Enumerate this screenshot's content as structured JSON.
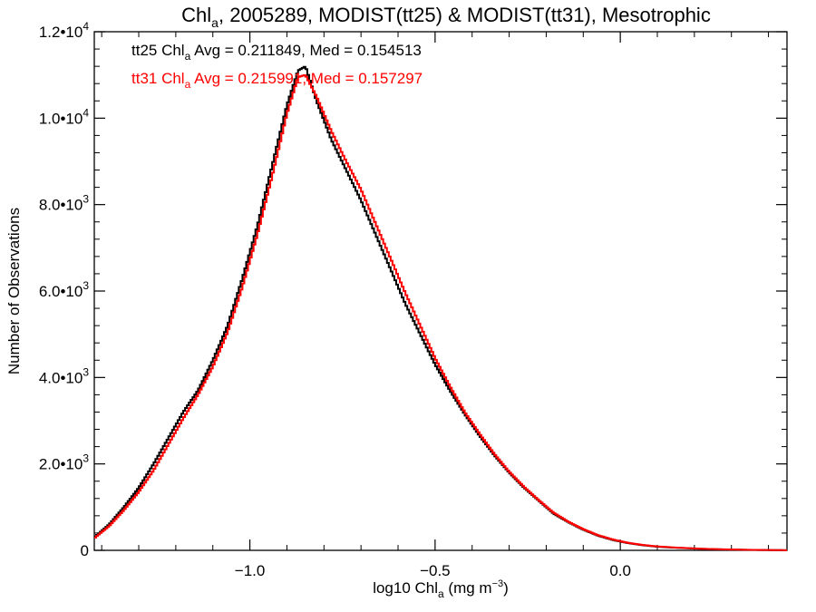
{
  "chart_data": {
    "type": "line",
    "style": "step-histogram",
    "title": {
      "main": "Chl",
      "sub": "a",
      "rest": ", 2005289, MODIST(tt25) & MODIST(tt31), Mesotrophic"
    },
    "xlabel": {
      "main": "log10 Chl",
      "sub": "a",
      "rest": " (mg m",
      "sup": "−3",
      "close": ")"
    },
    "ylabel": "Number of Observations",
    "xlim": [
      -1.42,
      0.45
    ],
    "ylim": [
      0,
      12000
    ],
    "x_ticks": [
      {
        "value": -1.0,
        "label": "−1.0"
      },
      {
        "value": -0.5,
        "label": "−0.5"
      },
      {
        "value": 0.0,
        "label": "0.0"
      }
    ],
    "y_ticks": [
      {
        "value": 0,
        "mant": "0",
        "exp": ""
      },
      {
        "value": 2000,
        "mant": "2.0•10",
        "exp": "3"
      },
      {
        "value": 4000,
        "mant": "4.0•10",
        "exp": "3"
      },
      {
        "value": 6000,
        "mant": "6.0•10",
        "exp": "3"
      },
      {
        "value": 8000,
        "mant": "8.0•10",
        "exp": "3"
      },
      {
        "value": 10000,
        "mant": "1.0•10",
        "exp": "4"
      },
      {
        "value": 12000,
        "mant": "1.2•10",
        "exp": "4"
      }
    ],
    "annotations": [
      {
        "prefix": "tt25 Chl",
        "sub": "a",
        "rest": " Avg = 0.211849, Med = 0.154513",
        "color": "#000000"
      },
      {
        "prefix": "tt31 Chl",
        "sub": "a",
        "rest": " Avg = 0.215991, Med = 0.157297",
        "color": "#ff0000"
      }
    ],
    "grid": false,
    "series": [
      {
        "color": "#000000",
        "x": [
          -1.42,
          -1.38,
          -1.34,
          -1.3,
          -1.26,
          -1.22,
          -1.18,
          -1.14,
          -1.1,
          -1.06,
          -1.02,
          -0.98,
          -0.94,
          -0.9,
          -0.87,
          -0.85,
          -0.82,
          -0.78,
          -0.74,
          -0.7,
          -0.66,
          -0.62,
          -0.58,
          -0.54,
          -0.5,
          -0.46,
          -0.42,
          -0.38,
          -0.34,
          -0.3,
          -0.26,
          -0.22,
          -0.18,
          -0.14,
          -0.1,
          -0.06,
          -0.02,
          0.02,
          0.06,
          0.1,
          0.14,
          0.18,
          0.22,
          0.26,
          0.3,
          0.34,
          0.38,
          0.42,
          0.45
        ],
        "values": [
          300,
          600,
          1000,
          1450,
          2000,
          2600,
          3200,
          3700,
          4400,
          5200,
          6300,
          7500,
          8900,
          10300,
          11100,
          11200,
          10400,
          9500,
          8800,
          8100,
          7300,
          6500,
          5700,
          5000,
          4300,
          3700,
          3150,
          2650,
          2200,
          1800,
          1450,
          1150,
          850,
          650,
          480,
          340,
          240,
          170,
          120,
          85,
          65,
          50,
          35,
          25,
          18,
          12,
          8,
          5,
          3
        ]
      },
      {
        "color": "#ff0000",
        "x": [
          -1.42,
          -1.38,
          -1.34,
          -1.3,
          -1.26,
          -1.22,
          -1.18,
          -1.14,
          -1.1,
          -1.06,
          -1.02,
          -0.98,
          -0.94,
          -0.9,
          -0.87,
          -0.85,
          -0.82,
          -0.78,
          -0.74,
          -0.7,
          -0.66,
          -0.62,
          -0.58,
          -0.54,
          -0.5,
          -0.46,
          -0.42,
          -0.38,
          -0.34,
          -0.3,
          -0.26,
          -0.22,
          -0.18,
          -0.14,
          -0.1,
          -0.06,
          -0.02,
          0.02,
          0.06,
          0.1,
          0.14,
          0.18,
          0.22,
          0.26,
          0.3,
          0.34,
          0.38,
          0.42,
          0.45
        ],
        "values": [
          280,
          560,
          930,
          1350,
          1850,
          2450,
          3050,
          3600,
          4250,
          5050,
          6100,
          7300,
          8650,
          10100,
          10950,
          11000,
          10500,
          9700,
          9000,
          8350,
          7550,
          6750,
          5950,
          5200,
          4450,
          3800,
          3200,
          2700,
          2230,
          1820,
          1470,
          1160,
          870,
          660,
          490,
          350,
          250,
          175,
          125,
          90,
          68,
          52,
          37,
          27,
          19,
          13,
          9,
          6,
          3
        ]
      }
    ]
  }
}
